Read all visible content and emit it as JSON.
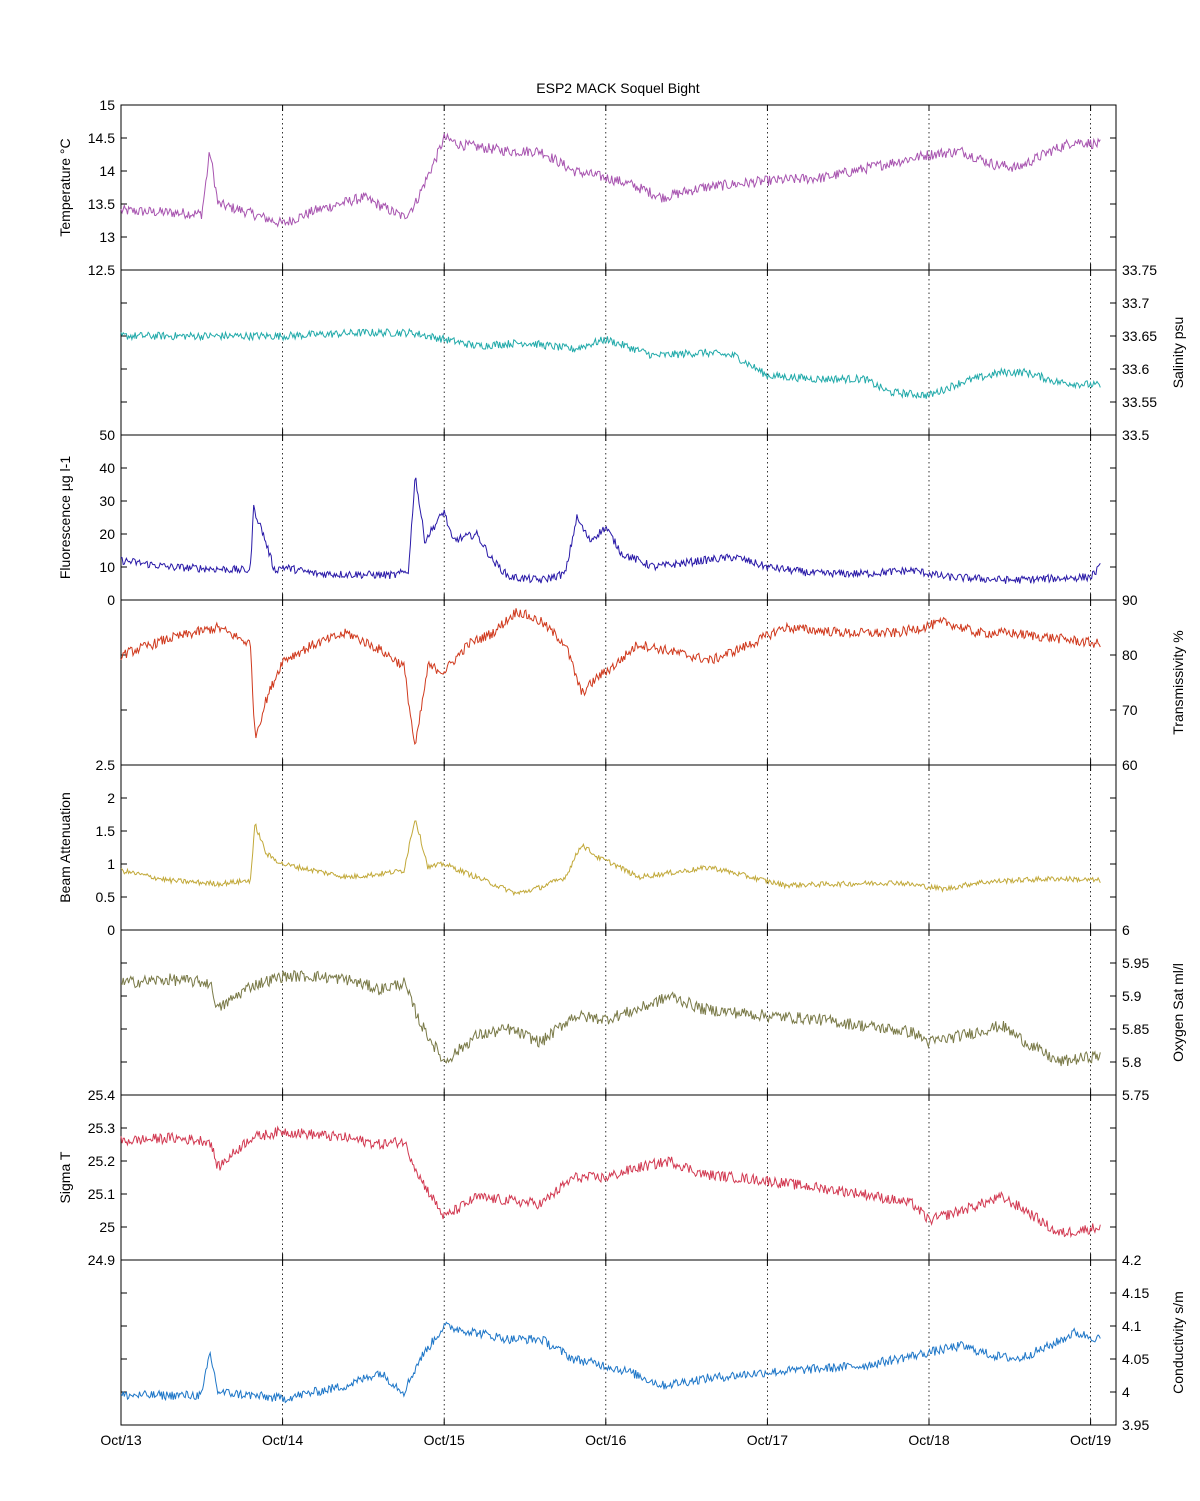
{
  "figure": {
    "title": "ESP2 MACK  Soquel Bight",
    "date_ticks": [
      "Oct/13",
      "Oct/14",
      "Oct/15",
      "Oct/16",
      "Oct/17",
      "Oct/18",
      "Oct/19"
    ]
  },
  "chart_data": [
    {
      "type": "line",
      "series": [
        {
          "name": "Temperature °C",
          "color": "#a855b0"
        }
      ],
      "ylabel": "Temperature °C",
      "axis_side": "left",
      "ylim": [
        12.5,
        15
      ],
      "yticks": [
        "12.5",
        "13",
        "13.5",
        "14",
        "14.5",
        "15"
      ],
      "x_range_days": [
        0,
        6.06
      ],
      "keypoints": [
        [
          0,
          13.4
        ],
        [
          0.5,
          13.35
        ],
        [
          0.55,
          14.3
        ],
        [
          0.6,
          13.5
        ],
        [
          0.75,
          13.4
        ],
        [
          1,
          13.2
        ],
        [
          1.2,
          13.4
        ],
        [
          1.5,
          13.6
        ],
        [
          1.75,
          13.3
        ],
        [
          1.82,
          13.5
        ],
        [
          1.95,
          14.2
        ],
        [
          2,
          14.5
        ],
        [
          2.1,
          14.4
        ],
        [
          2.4,
          14.3
        ],
        [
          2.6,
          14.3
        ],
        [
          2.8,
          14.0
        ],
        [
          3,
          13.9
        ],
        [
          3.15,
          13.8
        ],
        [
          3.35,
          13.6
        ],
        [
          3.6,
          13.75
        ],
        [
          4,
          13.85
        ],
        [
          4.35,
          13.9
        ],
        [
          5,
          14.25
        ],
        [
          5.2,
          14.3
        ],
        [
          5.4,
          14.1
        ],
        [
          5.55,
          14.05
        ],
        [
          5.75,
          14.3
        ],
        [
          5.9,
          14.45
        ],
        [
          6.06,
          14.4
        ]
      ],
      "noise": 0.08
    },
    {
      "type": "line",
      "series": [
        {
          "name": "Salinity psu",
          "color": "#22aaaa"
        }
      ],
      "ylabel": "Salinity psu",
      "axis_side": "right",
      "ylim": [
        33.5,
        33.75
      ],
      "yticks": [
        "33.5",
        "33.55",
        "33.6",
        "33.65",
        "33.7",
        "33.75"
      ],
      "x_range_days": [
        0,
        6.06
      ],
      "keypoints": [
        [
          0,
          33.65
        ],
        [
          0.6,
          33.65
        ],
        [
          1,
          33.65
        ],
        [
          1.5,
          33.655
        ],
        [
          1.8,
          33.655
        ],
        [
          2,
          33.645
        ],
        [
          2.2,
          33.635
        ],
        [
          2.5,
          33.64
        ],
        [
          2.8,
          33.63
        ],
        [
          3,
          33.645
        ],
        [
          3.3,
          33.62
        ],
        [
          3.6,
          33.625
        ],
        [
          3.8,
          33.62
        ],
        [
          4,
          33.59
        ],
        [
          4.3,
          33.585
        ],
        [
          4.6,
          33.585
        ],
        [
          4.75,
          33.565
        ],
        [
          5,
          33.56
        ],
        [
          5.2,
          33.58
        ],
        [
          5.45,
          33.595
        ],
        [
          5.6,
          33.595
        ],
        [
          5.8,
          33.58
        ],
        [
          6.06,
          33.575
        ]
      ],
      "noise": 0.006
    },
    {
      "type": "line",
      "series": [
        {
          "name": "Fluorescence µg l-1",
          "color": "#2a1aa8"
        }
      ],
      "ylabel": "Fluorescence µg l-1",
      "axis_side": "left",
      "ylim": [
        0,
        50
      ],
      "yticks": [
        "0",
        "10",
        "20",
        "30",
        "40",
        "50"
      ],
      "x_range_days": [
        0,
        6.06
      ],
      "keypoints": [
        [
          0,
          12
        ],
        [
          0.3,
          10
        ],
        [
          0.8,
          9
        ],
        [
          0.82,
          28
        ],
        [
          0.88,
          20
        ],
        [
          0.95,
          9
        ],
        [
          1,
          10
        ],
        [
          1.2,
          8
        ],
        [
          1.7,
          7.5
        ],
        [
          1.78,
          9
        ],
        [
          1.82,
          38
        ],
        [
          1.88,
          18
        ],
        [
          2,
          27
        ],
        [
          2.05,
          18
        ],
        [
          2.2,
          20
        ],
        [
          2.3,
          12
        ],
        [
          2.4,
          7
        ],
        [
          2.6,
          6
        ],
        [
          2.75,
          8
        ],
        [
          2.82,
          25
        ],
        [
          2.9,
          18
        ],
        [
          3,
          22
        ],
        [
          3.1,
          14
        ],
        [
          3.3,
          10
        ],
        [
          3.6,
          12
        ],
        [
          3.8,
          13
        ],
        [
          4,
          10
        ],
        [
          4.3,
          8
        ],
        [
          4.6,
          8
        ],
        [
          4.9,
          9
        ],
        [
          5.1,
          7
        ],
        [
          5.5,
          6
        ],
        [
          6,
          7
        ],
        [
          6.06,
          10
        ]
      ],
      "noise": 1.2
    },
    {
      "type": "line",
      "series": [
        {
          "name": "Transmissivity %",
          "color": "#d03a1e"
        }
      ],
      "ylabel": "Transmissivity %",
      "axis_side": "right",
      "ylim": [
        60,
        90
      ],
      "yticks": [
        "60",
        "70",
        "80",
        "90"
      ],
      "x_range_days": [
        0,
        6.06
      ],
      "keypoints": [
        [
          0,
          80
        ],
        [
          0.3,
          83
        ],
        [
          0.6,
          85
        ],
        [
          0.8,
          82
        ],
        [
          0.83,
          65
        ],
        [
          0.9,
          72
        ],
        [
          1,
          79
        ],
        [
          1.2,
          82
        ],
        [
          1.4,
          84
        ],
        [
          1.6,
          81
        ],
        [
          1.75,
          78
        ],
        [
          1.82,
          63
        ],
        [
          1.9,
          78
        ],
        [
          2,
          77
        ],
        [
          2.15,
          82
        ],
        [
          2.3,
          84
        ],
        [
          2.45,
          88
        ],
        [
          2.6,
          86
        ],
        [
          2.75,
          82
        ],
        [
          2.85,
          73
        ],
        [
          2.95,
          76
        ],
        [
          3.05,
          78
        ],
        [
          3.2,
          82
        ],
        [
          3.5,
          80
        ],
        [
          3.65,
          79
        ],
        [
          3.9,
          82
        ],
        [
          4.1,
          85
        ],
        [
          4.5,
          84
        ],
        [
          4.8,
          84
        ],
        [
          5.1,
          86
        ],
        [
          5.3,
          84
        ],
        [
          5.5,
          84
        ],
        [
          5.8,
          83
        ],
        [
          6.06,
          82
        ]
      ],
      "noise": 0.9
    },
    {
      "type": "line",
      "series": [
        {
          "name": "Beam Attenuation",
          "color": "#c2a93a"
        }
      ],
      "ylabel": "Beam Attenuation",
      "axis_side": "left",
      "ylim": [
        0,
        2.5
      ],
      "yticks": [
        "0",
        "0.5",
        "1",
        "1.5",
        "2",
        "2.5"
      ],
      "x_range_days": [
        0,
        6.06
      ],
      "keypoints": [
        [
          0,
          0.9
        ],
        [
          0.3,
          0.75
        ],
        [
          0.6,
          0.7
        ],
        [
          0.8,
          0.75
        ],
        [
          0.83,
          1.6
        ],
        [
          0.9,
          1.15
        ],
        [
          1,
          1.0
        ],
        [
          1.2,
          0.9
        ],
        [
          1.4,
          0.8
        ],
        [
          1.6,
          0.85
        ],
        [
          1.75,
          0.9
        ],
        [
          1.82,
          1.7
        ],
        [
          1.9,
          0.95
        ],
        [
          2,
          1.0
        ],
        [
          2.15,
          0.85
        ],
        [
          2.3,
          0.7
        ],
        [
          2.45,
          0.55
        ],
        [
          2.6,
          0.65
        ],
        [
          2.75,
          0.8
        ],
        [
          2.85,
          1.3
        ],
        [
          2.95,
          1.1
        ],
        [
          3.05,
          1.0
        ],
        [
          3.2,
          0.8
        ],
        [
          3.5,
          0.9
        ],
        [
          3.65,
          0.95
        ],
        [
          3.9,
          0.8
        ],
        [
          4.1,
          0.68
        ],
        [
          4.5,
          0.7
        ],
        [
          4.8,
          0.72
        ],
        [
          5.1,
          0.62
        ],
        [
          5.3,
          0.72
        ],
        [
          5.5,
          0.75
        ],
        [
          5.8,
          0.78
        ],
        [
          6.06,
          0.75
        ]
      ],
      "noise": 0.04
    },
    {
      "type": "line",
      "series": [
        {
          "name": "Oxygen Sat ml/l",
          "color": "#7a7a48"
        }
      ],
      "ylabel": "Oxygen Sat ml/l",
      "axis_side": "right",
      "ylim": [
        5.75,
        6
      ],
      "yticks": [
        "5.75",
        "5.8",
        "5.85",
        "5.9",
        "5.95",
        "6"
      ],
      "x_range_days": [
        0,
        6.06
      ],
      "keypoints": [
        [
          0,
          5.92
        ],
        [
          0.3,
          5.925
        ],
        [
          0.55,
          5.92
        ],
        [
          0.6,
          5.88
        ],
        [
          0.8,
          5.915
        ],
        [
          1,
          5.93
        ],
        [
          1.2,
          5.93
        ],
        [
          1.4,
          5.925
        ],
        [
          1.6,
          5.91
        ],
        [
          1.75,
          5.92
        ],
        [
          1.85,
          5.86
        ],
        [
          2,
          5.8
        ],
        [
          2.2,
          5.84
        ],
        [
          2.4,
          5.85
        ],
        [
          2.6,
          5.83
        ],
        [
          2.8,
          5.87
        ],
        [
          3,
          5.865
        ],
        [
          3.2,
          5.88
        ],
        [
          3.4,
          5.9
        ],
        [
          3.6,
          5.88
        ],
        [
          4,
          5.87
        ],
        [
          4.3,
          5.865
        ],
        [
          4.6,
          5.855
        ],
        [
          4.9,
          5.845
        ],
        [
          5,
          5.83
        ],
        [
          5.2,
          5.84
        ],
        [
          5.45,
          5.855
        ],
        [
          5.6,
          5.83
        ],
        [
          5.8,
          5.8
        ],
        [
          6.06,
          5.81
        ]
      ],
      "noise": 0.009
    },
    {
      "type": "line",
      "series": [
        {
          "name": "Sigma T",
          "color": "#d23a52"
        }
      ],
      "ylabel": "Sigma T",
      "axis_side": "left",
      "ylim": [
        24.9,
        25.4
      ],
      "yticks": [
        "24.9",
        "25",
        "25.1",
        "25.2",
        "25.3",
        "25.4"
      ],
      "x_range_days": [
        0,
        6.06
      ],
      "keypoints": [
        [
          0,
          25.26
        ],
        [
          0.3,
          25.27
        ],
        [
          0.55,
          25.26
        ],
        [
          0.6,
          25.18
        ],
        [
          0.8,
          25.27
        ],
        [
          1,
          25.29
        ],
        [
          1.2,
          25.28
        ],
        [
          1.4,
          25.27
        ],
        [
          1.6,
          25.25
        ],
        [
          1.75,
          25.26
        ],
        [
          1.85,
          25.15
        ],
        [
          2,
          25.03
        ],
        [
          2.2,
          25.09
        ],
        [
          2.4,
          25.08
        ],
        [
          2.6,
          25.07
        ],
        [
          2.8,
          25.15
        ],
        [
          3,
          25.15
        ],
        [
          3.2,
          25.18
        ],
        [
          3.4,
          25.2
        ],
        [
          3.6,
          25.16
        ],
        [
          4,
          25.14
        ],
        [
          4.3,
          25.12
        ],
        [
          4.6,
          25.1
        ],
        [
          4.9,
          25.07
        ],
        [
          5,
          25.02
        ],
        [
          5.2,
          25.05
        ],
        [
          5.45,
          25.09
        ],
        [
          5.6,
          25.05
        ],
        [
          5.8,
          24.98
        ],
        [
          6.06,
          25.0
        ]
      ],
      "noise": 0.016
    },
    {
      "type": "line",
      "series": [
        {
          "name": "Conductivity s/m",
          "color": "#1f77c8"
        }
      ],
      "ylabel": "Conductivity s/m",
      "axis_side": "right",
      "ylim": [
        3.95,
        4.2
      ],
      "yticks": [
        "3.95",
        "4",
        "4.05",
        "4.1",
        "4.15",
        "4.2"
      ],
      "x_range_days": [
        0,
        6.06
      ],
      "keypoints": [
        [
          0,
          3.995
        ],
        [
          0.5,
          3.995
        ],
        [
          0.55,
          4.06
        ],
        [
          0.6,
          4.0
        ],
        [
          1,
          3.99
        ],
        [
          1.2,
          4.0
        ],
        [
          1.4,
          4.01
        ],
        [
          1.6,
          4.03
        ],
        [
          1.75,
          4.0
        ],
        [
          1.85,
          4.05
        ],
        [
          2,
          4.1
        ],
        [
          2.2,
          4.09
        ],
        [
          2.4,
          4.08
        ],
        [
          2.6,
          4.08
        ],
        [
          2.8,
          4.05
        ],
        [
          3,
          4.04
        ],
        [
          3.15,
          4.03
        ],
        [
          3.35,
          4.01
        ],
        [
          3.6,
          4.02
        ],
        [
          4,
          4.03
        ],
        [
          4.3,
          4.035
        ],
        [
          4.6,
          4.04
        ],
        [
          5,
          4.06
        ],
        [
          5.2,
          4.07
        ],
        [
          5.4,
          4.055
        ],
        [
          5.55,
          4.05
        ],
        [
          5.75,
          4.07
        ],
        [
          5.9,
          4.09
        ],
        [
          6.06,
          4.08
        ]
      ],
      "noise": 0.007
    }
  ]
}
